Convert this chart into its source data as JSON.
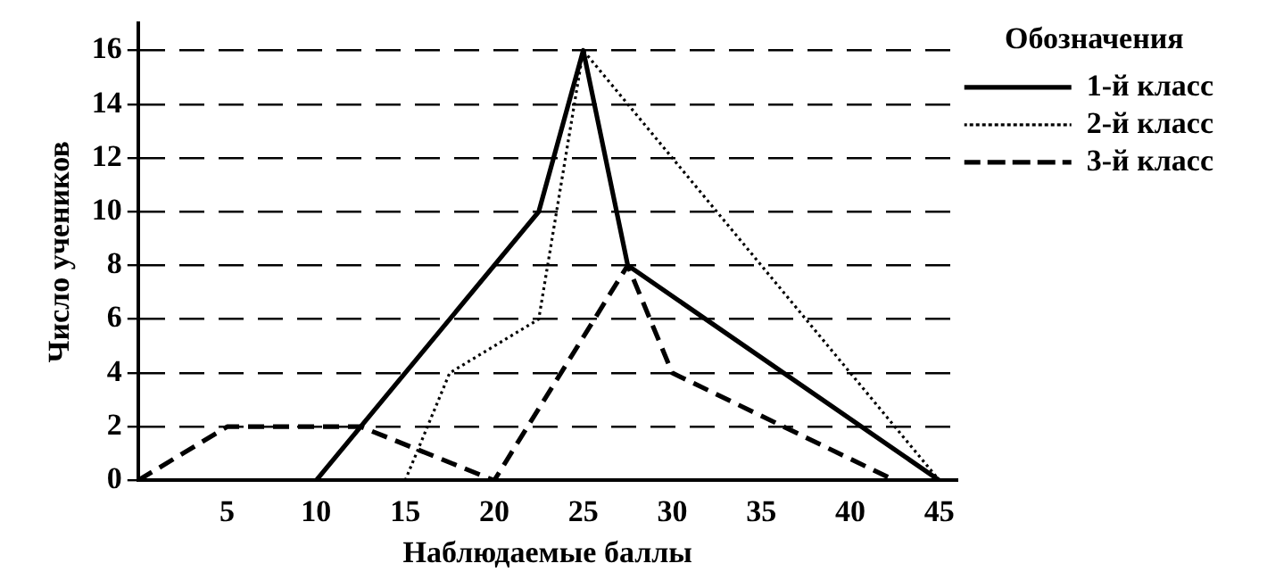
{
  "chart_data": {
    "type": "line",
    "xlabel": "Наблюдаемые баллы",
    "ylabel": "Число учеников",
    "legend_title": "Обозначения",
    "xlim": [
      0,
      46
    ],
    "xticks": [
      5,
      10,
      15,
      20,
      25,
      30,
      35,
      40,
      45
    ],
    "ylim": [
      0,
      17
    ],
    "yticks": [
      0,
      2,
      4,
      6,
      8,
      10,
      12,
      14,
      16
    ],
    "grid": "y",
    "legend": "top right",
    "marker": "none",
    "series": [
      {
        "name": "1-й класс",
        "color": "#000000",
        "line_style": "solid",
        "x": [
          10,
          22.5,
          25,
          27.5,
          45
        ],
        "values": [
          0,
          10,
          16,
          8,
          0
        ]
      },
      {
        "name": "2-й класс",
        "color": "#000000",
        "line_style": "dotted",
        "x": [
          15,
          17.5,
          22.5,
          25,
          45
        ],
        "values": [
          0,
          4,
          6,
          16,
          0
        ]
      },
      {
        "name": "3-й класс",
        "color": "#000000",
        "line_style": "dashed",
        "x": [
          0,
          5,
          12.5,
          20,
          27.5,
          30,
          42.5
        ],
        "values": [
          0,
          2,
          2,
          0,
          8,
          4,
          0
        ]
      }
    ]
  }
}
